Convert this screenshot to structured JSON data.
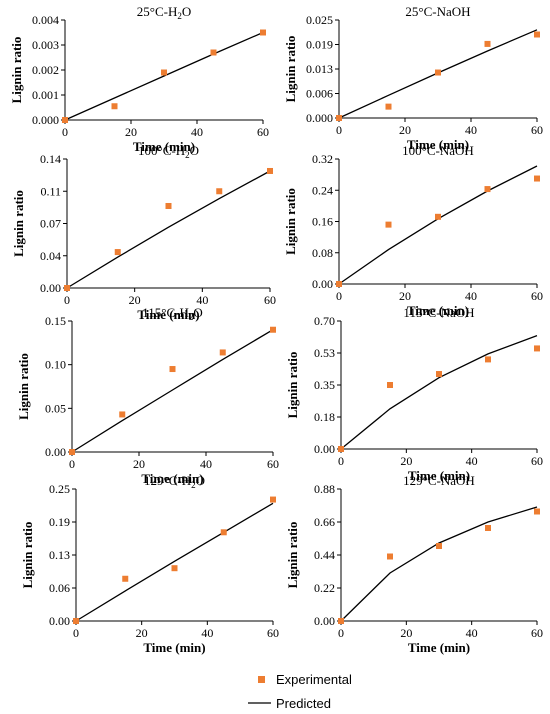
{
  "legend": {
    "experimental_label": "Experimental",
    "predicted_label": "Predicted",
    "experimental_color": "#ED7D31",
    "predicted_color": "#000000"
  },
  "chart_data": [
    {
      "type": "line",
      "title": "25°C-H",
      "title_sub": "2",
      "title_tail": "O",
      "xlabel": "Time (min)",
      "ylabel": "Lignin ratio",
      "x_ticks": [
        "0",
        "20",
        "40",
        "60"
      ],
      "y_ticks": [
        "0.000",
        "0.001",
        "0.002",
        "0.003",
        "0.004"
      ],
      "xlim": [
        0,
        60
      ],
      "ylim": [
        0,
        0.004
      ],
      "series": [
        {
          "name": "Experimental",
          "kind": "scatter",
          "x": [
            0,
            15,
            30,
            45,
            60
          ],
          "y": [
            0,
            0.00055,
            0.0019,
            0.0027,
            0.0035
          ]
        },
        {
          "name": "Predicted",
          "kind": "line",
          "x": [
            0,
            15,
            30,
            45,
            60
          ],
          "y": [
            0,
            0.00088,
            0.00176,
            0.00264,
            0.0035
          ]
        }
      ]
    },
    {
      "type": "line",
      "title": "25°C-NaOH",
      "xlabel": "Time (min)",
      "ylabel": "Lignin ratio",
      "x_ticks": [
        "0",
        "20",
        "40",
        "60"
      ],
      "y_ticks": [
        "0.000",
        "0.006",
        "0.013",
        "0.019",
        "0.025"
      ],
      "xlim": [
        0,
        60
      ],
      "ylim": [
        0,
        0.025
      ],
      "series": [
        {
          "name": "Experimental",
          "kind": "scatter",
          "x": [
            0,
            15,
            30,
            45,
            60
          ],
          "y": [
            0,
            0.0029,
            0.0116,
            0.0189,
            0.0213
          ]
        },
        {
          "name": "Predicted",
          "kind": "line",
          "x": [
            0,
            15,
            30,
            45,
            60
          ],
          "y": [
            0,
            0.0058,
            0.0115,
            0.0171,
            0.0225
          ]
        }
      ]
    },
    {
      "type": "line",
      "title": "100°C-H",
      "title_sub": "2",
      "title_tail": "O",
      "xlabel": "Time (min)",
      "ylabel": "Lignin ratio",
      "x_ticks": [
        "0",
        "20",
        "40",
        "60"
      ],
      "y_ticks": [
        "0.00",
        "0.04",
        "0.07",
        "0.11",
        "0.14"
      ],
      "xlim": [
        0,
        60
      ],
      "ylim": [
        0,
        0.14
      ],
      "series": [
        {
          "name": "Experimental",
          "kind": "scatter",
          "x": [
            0,
            15,
            30,
            45,
            60
          ],
          "y": [
            0,
            0.039,
            0.089,
            0.105,
            0.127
          ]
        },
        {
          "name": "Predicted",
          "kind": "line",
          "x": [
            0,
            15,
            30,
            45,
            60
          ],
          "y": [
            0,
            0.0335,
            0.066,
            0.097,
            0.127
          ]
        }
      ]
    },
    {
      "type": "line",
      "title": "100°C-NaOH",
      "xlabel": "Time (min)",
      "ylabel": "Lignin ratio",
      "x_ticks": [
        "0",
        "20",
        "40",
        "60"
      ],
      "y_ticks": [
        "0.00",
        "0.08",
        "0.16",
        "0.24",
        "0.32"
      ],
      "xlim": [
        0,
        60
      ],
      "ylim": [
        0,
        0.32
      ],
      "series": [
        {
          "name": "Experimental",
          "kind": "scatter",
          "x": [
            0,
            15,
            30,
            45,
            60
          ],
          "y": [
            0,
            0.152,
            0.172,
            0.243,
            0.27
          ]
        },
        {
          "name": "Predicted",
          "kind": "line",
          "x": [
            0,
            15,
            30,
            45,
            60
          ],
          "y": [
            0,
            0.088,
            0.167,
            0.238,
            0.302
          ]
        }
      ]
    },
    {
      "type": "line",
      "title": "115°C-H",
      "title_sub": "2",
      "title_tail": "O",
      "xlabel": "Time (min)",
      "ylabel": "Lignin ratio",
      "x_ticks": [
        "0",
        "20",
        "40",
        "60"
      ],
      "y_ticks": [
        "0.00",
        "0.05",
        "0.10",
        "0.15"
      ],
      "xlim": [
        0,
        60
      ],
      "ylim": [
        0,
        0.15
      ],
      "series": [
        {
          "name": "Experimental",
          "kind": "scatter",
          "x": [
            0,
            15,
            30,
            45,
            60
          ],
          "y": [
            0,
            0.043,
            0.095,
            0.114,
            0.14
          ]
        },
        {
          "name": "Predicted",
          "kind": "line",
          "x": [
            0,
            15,
            30,
            45,
            60
          ],
          "y": [
            0,
            0.036,
            0.071,
            0.106,
            0.14
          ]
        }
      ]
    },
    {
      "type": "line",
      "title": "115°C-NaOH",
      "xlabel": "Time (min)",
      "ylabel": "Lignin ratio",
      "x_ticks": [
        "0",
        "20",
        "40",
        "60"
      ],
      "y_ticks": [
        "0.00",
        "0.18",
        "0.35",
        "0.53",
        "0.70"
      ],
      "xlim": [
        0,
        60
      ],
      "ylim": [
        0,
        0.7
      ],
      "series": [
        {
          "name": "Experimental",
          "kind": "scatter",
          "x": [
            0,
            15,
            30,
            45,
            60
          ],
          "y": [
            0,
            0.35,
            0.41,
            0.49,
            0.55
          ]
        },
        {
          "name": "Predicted",
          "kind": "line",
          "x": [
            0,
            15,
            30,
            45,
            60
          ],
          "y": [
            0,
            0.22,
            0.39,
            0.52,
            0.62
          ]
        }
      ]
    },
    {
      "type": "line",
      "title": "129°C-H",
      "title_sub": "2",
      "title_tail": "O",
      "xlabel": "Time (min)",
      "ylabel": "Lignin ratio",
      "x_ticks": [
        "0",
        "20",
        "40",
        "60"
      ],
      "y_ticks": [
        "0.00",
        "0.06",
        "0.13",
        "0.19",
        "0.25"
      ],
      "xlim": [
        0,
        60
      ],
      "ylim": [
        0,
        0.25
      ],
      "series": [
        {
          "name": "Experimental",
          "kind": "scatter",
          "x": [
            0,
            15,
            30,
            45,
            60
          ],
          "y": [
            0,
            0.08,
            0.1,
            0.168,
            0.23
          ]
        },
        {
          "name": "Predicted",
          "kind": "line",
          "x": [
            0,
            15,
            30,
            45,
            60
          ],
          "y": [
            0,
            0.057,
            0.113,
            0.168,
            0.223
          ]
        }
      ]
    },
    {
      "type": "line",
      "title": "129°C-NaOH",
      "xlabel": "Time (min)",
      "ylabel": "Lignin ratio",
      "x_ticks": [
        "0",
        "20",
        "40",
        "60"
      ],
      "y_ticks": [
        "0.00",
        "0.22",
        "0.44",
        "0.66",
        "0.88"
      ],
      "xlim": [
        0,
        60
      ],
      "ylim": [
        0,
        0.88
      ],
      "series": [
        {
          "name": "Experimental",
          "kind": "scatter",
          "x": [
            0,
            15,
            30,
            45,
            60
          ],
          "y": [
            0,
            0.43,
            0.5,
            0.62,
            0.73
          ]
        },
        {
          "name": "Predicted",
          "kind": "line",
          "x": [
            0,
            15,
            30,
            45,
            60
          ],
          "y": [
            0,
            0.32,
            0.52,
            0.66,
            0.76
          ]
        }
      ]
    }
  ]
}
